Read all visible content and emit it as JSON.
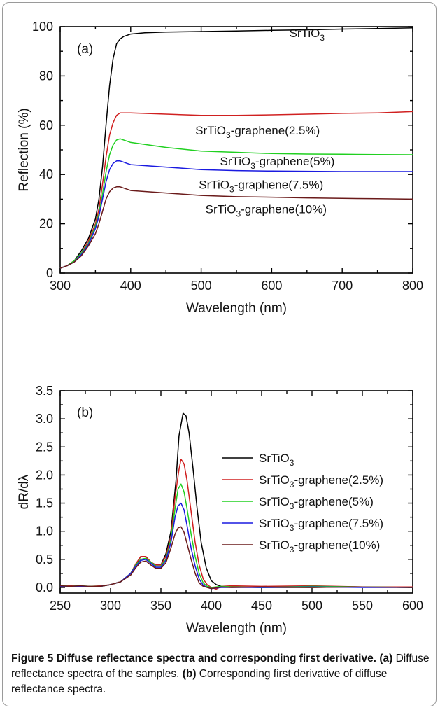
{
  "chart_data": [
    {
      "type": "line",
      "panel": "(a)",
      "xlabel": "Wavelength (nm)",
      "ylabel": "Reflection (%)",
      "xlim": [
        300,
        800
      ],
      "ylim": [
        0,
        100
      ],
      "xticks": [
        300,
        400,
        500,
        600,
        700,
        800
      ],
      "yticks": [
        0,
        20,
        40,
        60,
        80,
        100
      ],
      "grid": false,
      "series": [
        {
          "name": "SrTiO3",
          "label_parts": [
            "SrTiO",
            "3",
            ""
          ],
          "color": "#000000",
          "x": [
            300,
            310,
            320,
            330,
            340,
            350,
            355,
            360,
            365,
            370,
            375,
            380,
            385,
            390,
            395,
            400,
            420,
            450,
            500,
            550,
            600,
            650,
            700,
            750,
            800
          ],
          "y": [
            2,
            3,
            5,
            9,
            14,
            22,
            30,
            43,
            60,
            76,
            87,
            93,
            95,
            96,
            96.5,
            97,
            97.5,
            97.8,
            98,
            98.2,
            98.5,
            98.7,
            99,
            99.2,
            99.5
          ]
        },
        {
          "name": "SrTiO3-graphene(2.5%)",
          "label_parts": [
            "SrTiO",
            "3",
            "-graphene(2.5%)"
          ],
          "color": "#d02020",
          "x": [
            300,
            310,
            320,
            330,
            340,
            350,
            355,
            360,
            365,
            370,
            375,
            380,
            385,
            390,
            395,
            400,
            450,
            500,
            550,
            600,
            650,
            700,
            750,
            800
          ],
          "y": [
            2,
            3,
            5,
            8,
            13,
            20,
            26,
            36,
            47,
            56,
            61,
            64,
            65,
            65,
            65,
            65,
            64.5,
            64,
            64,
            64.2,
            64.5,
            64.8,
            65,
            65.5
          ]
        },
        {
          "name": "SrTiO3-graphene(5%)",
          "label_parts": [
            "SrTiO",
            "3",
            "-graphene(5%)"
          ],
          "color": "#20d020",
          "x": [
            300,
            310,
            320,
            330,
            340,
            350,
            355,
            360,
            365,
            370,
            375,
            380,
            385,
            390,
            395,
            400,
            450,
            500,
            550,
            600,
            650,
            700,
            750,
            800
          ],
          "y": [
            2,
            3,
            5,
            8,
            12,
            19,
            24,
            32,
            41,
            48,
            52,
            54,
            54.5,
            54,
            53.5,
            53,
            51,
            49.5,
            49,
            48.5,
            48.3,
            48.2,
            48.1,
            48
          ]
        },
        {
          "name": "SrTiO3-graphene(7.5%)",
          "label_parts": [
            "SrTiO",
            "3",
            "-graphene(7.5%)"
          ],
          "color": "#1a1ae0",
          "x": [
            300,
            310,
            320,
            330,
            340,
            350,
            355,
            360,
            365,
            370,
            375,
            380,
            385,
            390,
            395,
            400,
            450,
            500,
            550,
            600,
            650,
            700,
            750,
            800
          ],
          "y": [
            2,
            3,
            4.5,
            7.5,
            11.5,
            18,
            23,
            30,
            37,
            42,
            44.5,
            45.5,
            45.5,
            45,
            44.5,
            44,
            43,
            42,
            41.6,
            41.4,
            41.3,
            41.2,
            41.2,
            41.2
          ]
        },
        {
          "name": "SrTiO3-graphene(10%)",
          "label_parts": [
            "SrTiO",
            "3",
            "-graphene(10%)"
          ],
          "color": "#6a1a1a",
          "x": [
            300,
            310,
            320,
            330,
            340,
            350,
            355,
            360,
            365,
            370,
            375,
            380,
            385,
            390,
            395,
            400,
            450,
            500,
            550,
            600,
            650,
            700,
            750,
            800
          ],
          "y": [
            2,
            3,
            4.5,
            7,
            11,
            16,
            20,
            25,
            30,
            33,
            34.5,
            35,
            35,
            34.5,
            34,
            33.5,
            32.5,
            31.5,
            31,
            30.8,
            30.5,
            30.3,
            30.2,
            30
          ]
        }
      ],
      "annotations": [
        {
          "parts": [
            "SrTiO",
            "3",
            ""
          ],
          "x": 650,
          "y": 97.5
        },
        {
          "parts": [
            "SrTiO",
            "3",
            "-graphene(2.5%)"
          ],
          "x": 580,
          "y": 58
        },
        {
          "parts": [
            "SrTiO",
            "3",
            "-graphene(5%)"
          ],
          "x": 608,
          "y": 45.5
        },
        {
          "parts": [
            "SrTiO",
            "3",
            "-graphene(7.5%)"
          ],
          "x": 585,
          "y": 36
        },
        {
          "parts": [
            "SrTiO",
            "3",
            "-graphene(10%)"
          ],
          "x": 592,
          "y": 26
        }
      ]
    },
    {
      "type": "line",
      "panel": "(b)",
      "xlabel": "Wavelength (nm)",
      "ylabel": "dR/dλ",
      "xlim": [
        250,
        600
      ],
      "ylim": [
        -0.1,
        3.5
      ],
      "xticks": [
        250,
        300,
        350,
        400,
        450,
        500,
        550,
        600
      ],
      "yticks": [
        0.0,
        0.5,
        1.0,
        1.5,
        2.0,
        2.5,
        3.0,
        3.5
      ],
      "ytick_labels": [
        "0.0",
        "0.5",
        "1.0",
        "1.5",
        "2.0",
        "2.5",
        "3.0",
        "3.5"
      ],
      "grid": false,
      "legend_position": "right",
      "series": [
        {
          "name": "SrTiO3",
          "label_parts": [
            "SrTiO",
            "3",
            ""
          ],
          "color": "#000000",
          "x": [
            250,
            260,
            270,
            280,
            290,
            300,
            310,
            320,
            325,
            330,
            335,
            340,
            345,
            350,
            355,
            360,
            365,
            368,
            372,
            375,
            378,
            382,
            386,
            390,
            395,
            400,
            405,
            410,
            420,
            450,
            500,
            550,
            600
          ],
          "y": [
            0.03,
            0.02,
            0.03,
            0.01,
            0.02,
            0.05,
            0.1,
            0.25,
            0.4,
            0.55,
            0.55,
            0.45,
            0.4,
            0.4,
            0.6,
            1.0,
            1.9,
            2.7,
            3.1,
            3.05,
            2.75,
            2.1,
            1.4,
            0.8,
            0.35,
            0.12,
            0.05,
            0.02,
            0.01,
            0.0,
            0.0,
            0.01,
            0.0
          ]
        },
        {
          "name": "SrTiO3-graphene(2.5%)",
          "label_parts": [
            "SrTiO",
            "3",
            "-graphene(2.5%)"
          ],
          "color": "#d02020",
          "x": [
            250,
            260,
            270,
            280,
            290,
            300,
            310,
            320,
            325,
            330,
            335,
            340,
            345,
            350,
            355,
            360,
            364,
            368,
            370,
            373,
            376,
            380,
            384,
            388,
            392,
            396,
            400,
            405,
            410,
            420,
            450,
            500,
            550,
            600
          ],
          "y": [
            0.02,
            0.03,
            0.02,
            0.02,
            0.03,
            0.05,
            0.1,
            0.25,
            0.42,
            0.55,
            0.55,
            0.45,
            0.4,
            0.4,
            0.55,
            0.9,
            1.6,
            2.1,
            2.28,
            2.2,
            1.9,
            1.35,
            0.8,
            0.4,
            0.15,
            0.05,
            0.0,
            -0.03,
            0.02,
            0.03,
            0.02,
            0.03,
            0.01,
            0.01
          ]
        },
        {
          "name": "SrTiO3-graphene(5%)",
          "label_parts": [
            "SrTiO",
            "3",
            "-graphene(5%)"
          ],
          "color": "#20d020",
          "x": [
            250,
            260,
            270,
            280,
            290,
            300,
            310,
            320,
            325,
            330,
            335,
            340,
            345,
            350,
            355,
            360,
            364,
            367,
            370,
            373,
            376,
            380,
            384,
            388,
            392,
            396,
            400,
            410,
            420,
            450,
            500,
            550,
            600
          ],
          "y": [
            0.03,
            0.02,
            0.03,
            0.02,
            0.02,
            0.05,
            0.1,
            0.25,
            0.4,
            0.5,
            0.52,
            0.45,
            0.38,
            0.38,
            0.5,
            0.85,
            1.4,
            1.75,
            1.84,
            1.7,
            1.4,
            0.95,
            0.55,
            0.25,
            0.08,
            0.02,
            0.0,
            0.02,
            0.01,
            0.0,
            0.02,
            0.01,
            0.0
          ]
        },
        {
          "name": "SrTiO3-graphene(7.5%)",
          "label_parts": [
            "SrTiO",
            "3",
            "-graphene(7.5%)"
          ],
          "color": "#1a1ae0",
          "x": [
            250,
            260,
            270,
            280,
            290,
            300,
            310,
            320,
            325,
            330,
            335,
            340,
            345,
            350,
            355,
            360,
            364,
            367,
            370,
            373,
            376,
            380,
            384,
            388,
            392,
            396,
            400,
            410,
            420,
            450,
            500,
            550,
            600
          ],
          "y": [
            0.02,
            0.02,
            0.02,
            0.01,
            0.02,
            0.05,
            0.1,
            0.25,
            0.38,
            0.48,
            0.5,
            0.43,
            0.36,
            0.36,
            0.48,
            0.8,
            1.25,
            1.45,
            1.5,
            1.38,
            1.1,
            0.7,
            0.38,
            0.15,
            0.04,
            0.0,
            -0.02,
            0.0,
            0.0,
            0.0,
            0.01,
            0.0,
            0.0
          ]
        },
        {
          "name": "SrTiO3-graphene(10%)",
          "label_parts": [
            "SrTiO",
            "3",
            "-graphene(10%)"
          ],
          "color": "#6a1a1a",
          "x": [
            250,
            260,
            270,
            280,
            290,
            300,
            310,
            320,
            325,
            330,
            335,
            340,
            345,
            350,
            355,
            360,
            364,
            367,
            370,
            373,
            376,
            380,
            384,
            388,
            392,
            396,
            400,
            410,
            420,
            450,
            500,
            550,
            600
          ],
          "y": [
            0.03,
            0.02,
            0.03,
            0.02,
            0.02,
            0.05,
            0.1,
            0.22,
            0.35,
            0.45,
            0.47,
            0.4,
            0.34,
            0.34,
            0.44,
            0.7,
            0.95,
            1.06,
            1.08,
            0.98,
            0.78,
            0.5,
            0.25,
            0.08,
            0.02,
            0.0,
            -0.02,
            0.01,
            0.0,
            0.01,
            0.0,
            0.01,
            0.0
          ]
        }
      ]
    }
  ],
  "caption": {
    "bold_title": "Figure 5 Diffuse reflectance spectra and corresponding first derivative.",
    "a_label": "(a)",
    "a_text": " Diffuse reflectance spectra of the samples. ",
    "b_label": "(b)",
    "b_text": " Corresponding first derivative of diffuse reflectance spectra."
  }
}
